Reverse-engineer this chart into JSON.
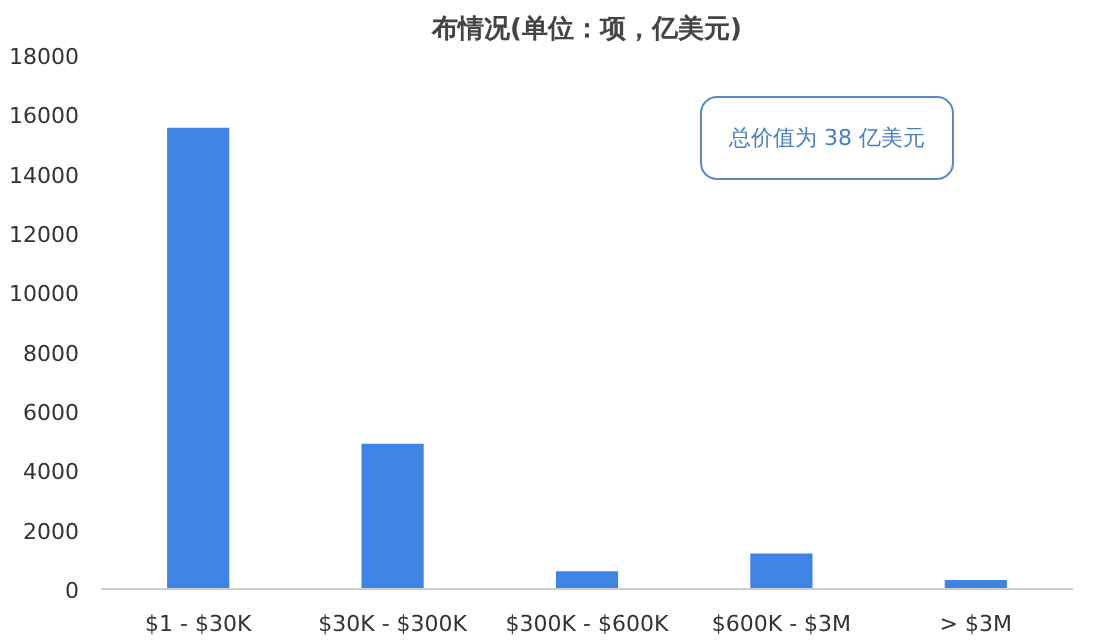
{
  "chart_data": {
    "type": "bar",
    "title": "布情况(单位：项，亿美元)",
    "categories": [
      "$1 - $30K",
      "$30K - $300K",
      "$300K - $600K",
      "$600K - $3M",
      "> $3M"
    ],
    "values": [
      15550,
      4900,
      600,
      1200,
      300
    ],
    "color": "#3f84e5",
    "ylim": [
      0,
      18000
    ],
    "yticks": [
      0,
      2000,
      4000,
      6000,
      8000,
      10000,
      12000,
      14000,
      16000,
      18000
    ],
    "grid": false,
    "annotations": [
      "总价值为 38 亿美元"
    ]
  }
}
